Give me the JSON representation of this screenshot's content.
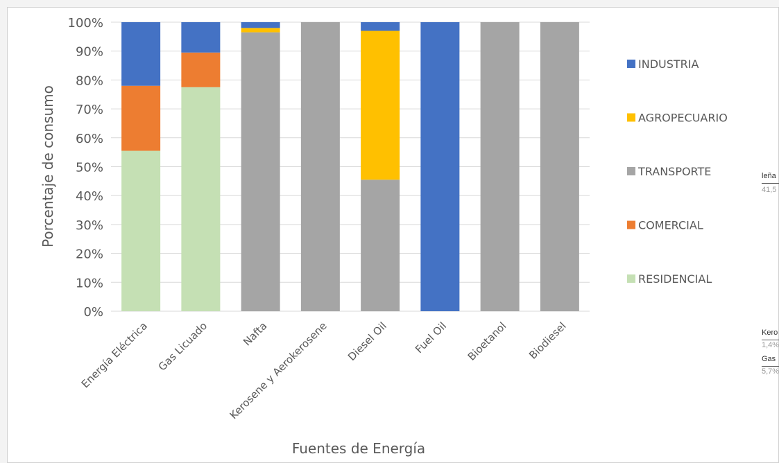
{
  "chart_data": {
    "type": "bar",
    "stacked": true,
    "percent": true,
    "xlabel": "Fuentes de Energía",
    "ylabel": "Porcentaje de consumo",
    "ylim": [
      0,
      100
    ],
    "yticks": [
      "0%",
      "10%",
      "20%",
      "30%",
      "40%",
      "50%",
      "60%",
      "70%",
      "80%",
      "90%",
      "100%"
    ],
    "grid": true,
    "legend_position": "right",
    "categories": [
      "Energía Eléctrica",
      "Gas Licuado",
      "Nafta",
      "Kerosene y Aerokerosene",
      "Diesel Oil",
      "Fuel Oil",
      "Bioetanol",
      "Biodiesel"
    ],
    "series": [
      {
        "name": "RESIDENCIAL",
        "color": "#c5e0b4",
        "values": [
          55.5,
          77.5,
          0,
          0,
          0,
          0,
          0,
          0
        ]
      },
      {
        "name": "COMERCIAL",
        "color": "#ed7d31",
        "values": [
          22.5,
          12,
          0,
          0,
          0,
          0,
          0,
          0
        ]
      },
      {
        "name": "TRANSPORTE",
        "color": "#a5a5a5",
        "values": [
          0,
          0,
          96.5,
          100,
          45.5,
          0,
          100,
          100
        ]
      },
      {
        "name": "AGROPECUARIO",
        "color": "#ffc000",
        "values": [
          0,
          0,
          1.5,
          0,
          51.5,
          0,
          0,
          0
        ]
      },
      {
        "name": "INDUSTRIA",
        "color": "#4472c4",
        "values": [
          22,
          10.5,
          2,
          0,
          3,
          100,
          0,
          0
        ]
      }
    ],
    "legend_order": [
      "INDUSTRIA",
      "AGROPECUARIO",
      "TRANSPORTE",
      "COMERCIAL",
      "RESIDENCIAL"
    ]
  },
  "side_panel": {
    "label1": "leña",
    "value1": "41,5",
    "label2": "Kero",
    "value2": "1,4%",
    "label3": "Gas",
    "value3": "5,7%"
  }
}
